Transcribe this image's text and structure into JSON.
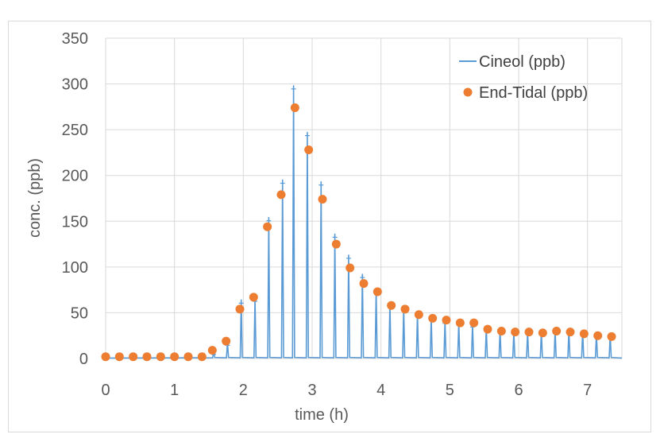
{
  "chart_data": {
    "type": "line",
    "xlabel": "time (h)",
    "ylabel": "conc. (ppb)",
    "xlim": [
      0,
      7.5
    ],
    "ylim": [
      0,
      350
    ],
    "x_ticks": [
      "0",
      "1",
      "2",
      "3",
      "4",
      "5",
      "6",
      "7"
    ],
    "y_ticks": [
      "0",
      "50",
      "100",
      "150",
      "200",
      "250",
      "300",
      "350"
    ],
    "grid": true,
    "legend_position": "top-right",
    "colors": {
      "cineol": "#5b9bd5",
      "end_tidal": "#ed7d31",
      "grid": "#d9d9d9"
    },
    "series": [
      {
        "name": "Cineol (ppb)",
        "kind": "line",
        "peaks": [
          [
            1.57,
            8
          ],
          [
            1.77,
            18
          ],
          [
            1.97,
            64
          ],
          [
            2.17,
            66
          ],
          [
            2.37,
            154
          ],
          [
            2.57,
            195
          ],
          [
            2.73,
            298
          ],
          [
            2.93,
            247
          ],
          [
            3.13,
            193
          ],
          [
            3.33,
            136
          ],
          [
            3.53,
            113
          ],
          [
            3.73,
            92
          ],
          [
            3.93,
            76
          ],
          [
            4.13,
            60
          ],
          [
            4.33,
            56
          ],
          [
            4.53,
            50
          ],
          [
            4.73,
            45
          ],
          [
            4.93,
            42
          ],
          [
            5.13,
            40
          ],
          [
            5.33,
            38
          ],
          [
            5.53,
            34
          ],
          [
            5.73,
            32
          ],
          [
            5.93,
            30
          ],
          [
            6.13,
            30
          ],
          [
            6.33,
            30
          ],
          [
            6.53,
            31
          ],
          [
            6.73,
            31
          ],
          [
            6.93,
            30
          ],
          [
            7.13,
            27
          ],
          [
            7.33,
            26
          ]
        ]
      },
      {
        "name": "End-Tidal (ppb)",
        "kind": "scatter",
        "x": [
          0.0,
          0.2,
          0.4,
          0.6,
          0.8,
          1.0,
          1.2,
          1.4,
          1.55,
          1.75,
          1.95,
          2.15,
          2.35,
          2.55,
          2.75,
          2.95,
          3.15,
          3.35,
          3.55,
          3.75,
          3.95,
          4.15,
          4.35,
          4.55,
          4.75,
          4.95,
          5.15,
          5.35,
          5.55,
          5.75,
          5.95,
          6.15,
          6.35,
          6.55,
          6.75,
          6.95,
          7.15,
          7.35
        ],
        "y": [
          2,
          2,
          2,
          2,
          2,
          2,
          2,
          2,
          9,
          19,
          54,
          67,
          144,
          179,
          274,
          228,
          174,
          125,
          99,
          82,
          73,
          58,
          54,
          48,
          44,
          42,
          39,
          39,
          32,
          30,
          29,
          29,
          28,
          30,
          29,
          27,
          25,
          24
        ]
      }
    ]
  }
}
